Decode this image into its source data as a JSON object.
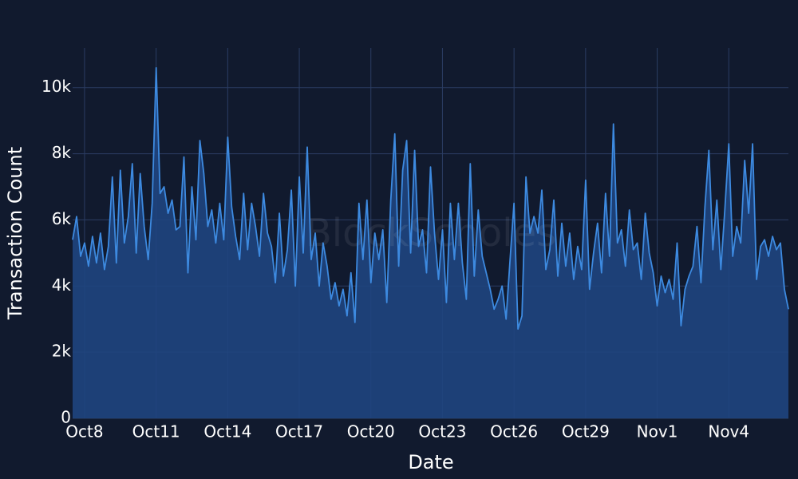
{
  "chart_data": {
    "type": "area",
    "watermark": "BlockScholes",
    "x_label": "Date",
    "y_label": "Transaction Count",
    "color": "#3d8ae0",
    "fill": "#1f4580",
    "grid": true,
    "xlim": [
      "Oct7 12:00",
      "Nov6 12:00"
    ],
    "ylim": [
      0,
      11200
    ],
    "yticks": [
      0,
      {
        "value": 2000,
        "label": "2k"
      },
      {
        "value": 4000,
        "label": "4k"
      },
      {
        "value": 6000,
        "label": "6k"
      },
      {
        "value": 8000,
        "label": "8k"
      },
      {
        "value": 10000,
        "label": "10k"
      }
    ],
    "xticks": [
      {
        "value": "Oct8 00:00",
        "label": "Oct8"
      },
      {
        "value": "Oct11 00:00",
        "label": "Oct11"
      },
      {
        "value": "Oct14 00:00",
        "label": "Oct14"
      },
      {
        "value": "Oct17 00:00",
        "label": "Oct17"
      },
      {
        "value": "Oct20 00:00",
        "label": "Oct20"
      },
      {
        "value": "Oct23 00:00",
        "label": "Oct23"
      },
      {
        "value": "Oct26 00:00",
        "label": "Oct26"
      },
      {
        "value": "Oct29 00:00",
        "label": "Oct29"
      },
      {
        "value": "Nov1 00:00",
        "label": "Nov1"
      },
      {
        "value": "Nov4 00:00",
        "label": "Nov4"
      }
    ],
    "x": [
      "Oct7 12:00",
      "Oct7 16:00",
      "Oct7 20:00",
      "Oct8 00:00",
      "Oct8 04:00",
      "Oct8 08:00",
      "Oct8 12:00",
      "Oct8 16:00",
      "Oct8 20:00",
      "Oct9 00:00",
      "Oct9 04:00",
      "Oct9 08:00",
      "Oct9 12:00",
      "Oct9 16:00",
      "Oct9 20:00",
      "Oct10 00:00",
      "Oct10 04:00",
      "Oct10 08:00",
      "Oct10 12:00",
      "Oct10 16:00",
      "Oct10 20:00",
      "Oct11 00:00",
      "Oct11 04:00",
      "Oct11 08:00",
      "Oct11 12:00",
      "Oct11 16:00",
      "Oct11 20:00",
      "Oct12 00:00",
      "Oct12 04:00",
      "Oct12 08:00",
      "Oct12 12:00",
      "Oct12 16:00",
      "Oct12 20:00",
      "Oct13 00:00",
      "Oct13 04:00",
      "Oct13 08:00",
      "Oct13 12:00",
      "Oct13 16:00",
      "Oct13 20:00",
      "Oct14 00:00",
      "Oct14 04:00",
      "Oct14 08:00",
      "Oct14 12:00",
      "Oct14 16:00",
      "Oct14 20:00",
      "Oct15 00:00",
      "Oct15 04:00",
      "Oct15 08:00",
      "Oct15 12:00",
      "Oct15 16:00",
      "Oct15 20:00",
      "Oct16 00:00",
      "Oct16 04:00",
      "Oct16 08:00",
      "Oct16 12:00",
      "Oct16 16:00",
      "Oct16 20:00",
      "Oct17 00:00",
      "Oct17 04:00",
      "Oct17 08:00",
      "Oct17 12:00",
      "Oct17 16:00",
      "Oct17 20:00",
      "Oct18 00:00",
      "Oct18 04:00",
      "Oct18 08:00",
      "Oct18 12:00",
      "Oct18 16:00",
      "Oct18 20:00",
      "Oct19 00:00",
      "Oct19 04:00",
      "Oct19 08:00",
      "Oct19 12:00",
      "Oct19 16:00",
      "Oct19 20:00",
      "Oct20 00:00",
      "Oct20 04:00",
      "Oct20 08:00",
      "Oct20 12:00",
      "Oct20 16:00",
      "Oct20 20:00",
      "Oct21 00:00",
      "Oct21 04:00",
      "Oct21 08:00",
      "Oct21 12:00",
      "Oct21 16:00",
      "Oct21 20:00",
      "Oct22 00:00",
      "Oct22 04:00",
      "Oct22 08:00",
      "Oct22 12:00",
      "Oct22 16:00",
      "Oct22 20:00",
      "Oct23 00:00",
      "Oct23 04:00",
      "Oct23 08:00",
      "Oct23 12:00",
      "Oct23 16:00",
      "Oct23 20:00",
      "Oct24 00:00",
      "Oct24 04:00",
      "Oct24 08:00",
      "Oct24 12:00",
      "Oct24 16:00",
      "Oct24 20:00",
      "Oct25 00:00",
      "Oct25 04:00",
      "Oct25 08:00",
      "Oct25 12:00",
      "Oct25 16:00",
      "Oct25 20:00",
      "Oct26 00:00",
      "Oct26 04:00",
      "Oct26 08:00",
      "Oct26 12:00",
      "Oct26 16:00",
      "Oct26 20:00",
      "Oct27 00:00",
      "Oct27 04:00",
      "Oct27 08:00",
      "Oct27 12:00",
      "Oct27 16:00",
      "Oct27 20:00",
      "Oct28 00:00",
      "Oct28 04:00",
      "Oct28 08:00",
      "Oct28 12:00",
      "Oct28 16:00",
      "Oct28 20:00",
      "Oct29 00:00",
      "Oct29 04:00",
      "Oct29 08:00",
      "Oct29 12:00",
      "Oct29 16:00",
      "Oct29 20:00",
      "Oct30 00:00",
      "Oct30 04:00",
      "Oct30 08:00",
      "Oct30 12:00",
      "Oct30 16:00",
      "Oct30 20:00",
      "Oct31 00:00",
      "Oct31 04:00",
      "Oct31 08:00",
      "Oct31 12:00",
      "Oct31 16:00",
      "Oct31 20:00",
      "Nov1 00:00",
      "Nov1 04:00",
      "Nov1 08:00",
      "Nov1 12:00",
      "Nov1 16:00",
      "Nov1 20:00",
      "Nov2 00:00",
      "Nov2 04:00",
      "Nov2 08:00",
      "Nov2 12:00",
      "Nov2 16:00",
      "Nov2 20:00",
      "Nov3 00:00",
      "Nov3 04:00",
      "Nov3 08:00",
      "Nov3 12:00",
      "Nov3 16:00",
      "Nov3 20:00",
      "Nov4 00:00",
      "Nov4 04:00",
      "Nov4 08:00",
      "Nov4 12:00",
      "Nov4 16:00",
      "Nov4 20:00",
      "Nov5 00:00",
      "Nov5 04:00",
      "Nov5 08:00",
      "Nov5 12:00",
      "Nov5 16:00",
      "Nov5 20:00",
      "Nov6 00:00",
      "Nov6 04:00",
      "Nov6 08:00",
      "Nov6 12:00"
    ],
    "values": [
      5400,
      6100,
      4900,
      5300,
      4600,
      5500,
      4700,
      5600,
      4500,
      5200,
      7300,
      4700,
      7500,
      5300,
      6100,
      7700,
      5000,
      7400,
      5800,
      4800,
      6500,
      10600,
      6800,
      7000,
      6200,
      6600,
      5700,
      5800,
      7900,
      4400,
      7000,
      5400,
      8400,
      7400,
      5800,
      6300,
      5300,
      6500,
      5400,
      8500,
      6400,
      5500,
      4800,
      6800,
      5100,
      6500,
      5800,
      4900,
      6800,
      5600,
      5200,
      4100,
      6200,
      4300,
      5100,
      6900,
      4000,
      7300,
      5000,
      8200,
      4800,
      5600,
      4000,
      5300,
      4600,
      3600,
      4100,
      3400,
      3900,
      3100,
      4400,
      2900,
      6500,
      4800,
      6600,
      4100,
      5600,
      4800,
      5700,
      3500,
      6600,
      8600,
      4600,
      7500,
      8400,
      5000,
      8100,
      5200,
      5700,
      4400,
      7600,
      5600,
      4200,
      5700,
      3500,
      6500,
      4800,
      6500,
      4700,
      3600,
      7700,
      4300,
      6300,
      4900,
      4400,
      3900,
      3300,
      3600,
      4000,
      3000,
      4800,
      6500,
      2700,
      3100,
      7300,
      5600,
      6100,
      5600,
      6900,
      4500,
      5100,
      6600,
      4300,
      5900,
      4600,
      5600,
      4200,
      5200,
      4500,
      7200,
      3900,
      5000,
      5900,
      4400,
      6800,
      4900,
      8900,
      5300,
      5700,
      4600,
      6300,
      5100,
      5300,
      4200,
      6200,
      5000,
      4400,
      3400,
      4300,
      3800,
      4200,
      3600,
      5300,
      2800,
      3900,
      4300,
      4600,
      5800,
      4100,
      6400,
      8100,
      5100,
      6600,
      4500,
      6300,
      8300,
      4900,
      5800,
      5300,
      7800,
      6200,
      8300,
      4200,
      5200,
      5400,
      4900,
      5500,
      5100,
      5300,
      3900,
      3300
    ]
  }
}
